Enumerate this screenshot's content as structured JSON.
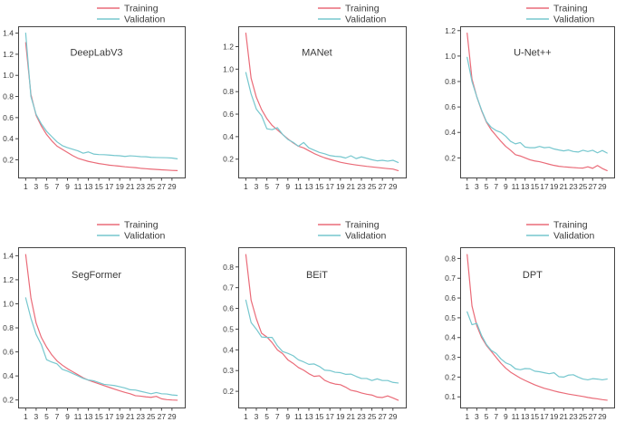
{
  "figure_title": "",
  "legend": {
    "training_label": "Training",
    "validation_label": "Validation",
    "position": "above-top-right"
  },
  "colors": {
    "training_line": "#ea6b78",
    "validation_line": "#76c7ce",
    "axis": "#454545",
    "text": "#3a3a3a",
    "background": "#ffffff"
  },
  "chart_data": [
    {
      "type": "line",
      "title": "DeepLabV3",
      "xlabel": "",
      "ylabel": "",
      "x": [
        1,
        2,
        3,
        4,
        5,
        6,
        7,
        8,
        9,
        10,
        11,
        12,
        13,
        14,
        15,
        16,
        17,
        18,
        19,
        20,
        21,
        22,
        23,
        24,
        25,
        26,
        27,
        28,
        29,
        30
      ],
      "x_ticks": [
        1,
        3,
        5,
        7,
        9,
        11,
        13,
        15,
        17,
        19,
        21,
        23,
        25,
        27,
        29
      ],
      "y_ticks": [
        0.2,
        0.4,
        0.6,
        0.8,
        1.0,
        1.2,
        1.4
      ],
      "grid": false,
      "series": [
        {
          "name": "Training",
          "values": [
            1.31,
            0.82,
            0.62,
            0.52,
            0.44,
            0.38,
            0.33,
            0.3,
            0.27,
            0.24,
            0.215,
            0.2,
            0.185,
            0.175,
            0.165,
            0.158,
            0.15,
            0.145,
            0.14,
            0.134,
            0.13,
            0.126,
            0.12,
            0.116,
            0.112,
            0.109,
            0.106,
            0.103,
            0.1,
            0.098
          ]
        },
        {
          "name": "Validation",
          "values": [
            1.4,
            0.8,
            0.63,
            0.54,
            0.47,
            0.42,
            0.37,
            0.335,
            0.315,
            0.3,
            0.285,
            0.263,
            0.275,
            0.255,
            0.25,
            0.249,
            0.245,
            0.241,
            0.239,
            0.232,
            0.238,
            0.235,
            0.23,
            0.229,
            0.224,
            0.222,
            0.221,
            0.22,
            0.217,
            0.21
          ]
        }
      ]
    },
    {
      "type": "line",
      "title": "MANet",
      "xlabel": "",
      "ylabel": "",
      "x": [
        1,
        2,
        3,
        4,
        5,
        6,
        7,
        8,
        9,
        10,
        11,
        12,
        13,
        14,
        15,
        16,
        17,
        18,
        19,
        20,
        21,
        22,
        23,
        24,
        25,
        26,
        27,
        28,
        29,
        30
      ],
      "x_ticks": [
        1,
        3,
        5,
        7,
        9,
        11,
        13,
        15,
        17,
        19,
        21,
        23,
        25,
        27,
        29
      ],
      "y_ticks": [
        0.2,
        0.4,
        0.6,
        0.8,
        1.0,
        1.2
      ],
      "grid": false,
      "series": [
        {
          "name": "Training",
          "values": [
            1.32,
            0.92,
            0.75,
            0.64,
            0.56,
            0.5,
            0.46,
            0.42,
            0.38,
            0.345,
            0.315,
            0.3,
            0.275,
            0.25,
            0.23,
            0.212,
            0.198,
            0.185,
            0.172,
            0.163,
            0.155,
            0.148,
            0.142,
            0.136,
            0.131,
            0.126,
            0.121,
            0.116,
            0.112,
            0.098
          ]
        },
        {
          "name": "Validation",
          "values": [
            0.97,
            0.78,
            0.645,
            0.585,
            0.47,
            0.462,
            0.48,
            0.42,
            0.375,
            0.35,
            0.315,
            0.348,
            0.3,
            0.28,
            0.26,
            0.248,
            0.232,
            0.225,
            0.222,
            0.21,
            0.23,
            0.205,
            0.22,
            0.208,
            0.195,
            0.185,
            0.19,
            0.182,
            0.19,
            0.17
          ]
        }
      ]
    },
    {
      "type": "line",
      "title": "U-Net++",
      "xlabel": "",
      "ylabel": "",
      "x": [
        1,
        2,
        3,
        4,
        5,
        6,
        7,
        8,
        9,
        10,
        11,
        12,
        13,
        14,
        15,
        16,
        17,
        18,
        19,
        20,
        21,
        22,
        23,
        24,
        25,
        26,
        27,
        28,
        29,
        30
      ],
      "x_ticks": [
        1,
        3,
        5,
        7,
        9,
        11,
        13,
        15,
        17,
        19,
        21,
        23,
        25,
        27,
        29
      ],
      "y_ticks": [
        0.2,
        0.4,
        0.6,
        0.8,
        1.0,
        1.2
      ],
      "grid": false,
      "series": [
        {
          "name": "Training",
          "values": [
            1.18,
            0.82,
            0.68,
            0.57,
            0.48,
            0.42,
            0.375,
            0.33,
            0.29,
            0.26,
            0.225,
            0.215,
            0.2,
            0.185,
            0.176,
            0.17,
            0.16,
            0.15,
            0.141,
            0.134,
            0.13,
            0.127,
            0.124,
            0.121,
            0.12,
            0.13,
            0.118,
            0.14,
            0.117,
            0.1
          ]
        },
        {
          "name": "Validation",
          "values": [
            0.99,
            0.8,
            0.68,
            0.575,
            0.485,
            0.44,
            0.415,
            0.4,
            0.37,
            0.33,
            0.31,
            0.32,
            0.285,
            0.28,
            0.28,
            0.29,
            0.28,
            0.284,
            0.27,
            0.262,
            0.255,
            0.262,
            0.25,
            0.246,
            0.26,
            0.25,
            0.26,
            0.24,
            0.258,
            0.238
          ]
        }
      ]
    },
    {
      "type": "line",
      "title": "SegFormer",
      "xlabel": "",
      "ylabel": "",
      "x": [
        1,
        2,
        3,
        4,
        5,
        6,
        7,
        8,
        9,
        10,
        11,
        12,
        13,
        14,
        15,
        16,
        17,
        18,
        19,
        20,
        21,
        22,
        23,
        24,
        25,
        26,
        27,
        28,
        29,
        30
      ],
      "x_ticks": [
        1,
        3,
        5,
        7,
        9,
        11,
        13,
        15,
        17,
        19,
        21,
        23,
        25,
        27,
        29
      ],
      "y_ticks": [
        0.2,
        0.4,
        0.6,
        0.8,
        1.0,
        1.2,
        1.4
      ],
      "grid": false,
      "series": [
        {
          "name": "Training",
          "values": [
            1.41,
            1.05,
            0.84,
            0.72,
            0.64,
            0.575,
            0.525,
            0.49,
            0.46,
            0.435,
            0.41,
            0.385,
            0.365,
            0.35,
            0.335,
            0.32,
            0.305,
            0.29,
            0.276,
            0.263,
            0.252,
            0.236,
            0.232,
            0.226,
            0.222,
            0.23,
            0.21,
            0.203,
            0.2,
            0.198
          ]
        },
        {
          "name": "Validation",
          "values": [
            1.05,
            0.88,
            0.745,
            0.66,
            0.535,
            0.515,
            0.5,
            0.455,
            0.44,
            0.42,
            0.4,
            0.38,
            0.366,
            0.36,
            0.345,
            0.33,
            0.325,
            0.32,
            0.31,
            0.3,
            0.285,
            0.283,
            0.272,
            0.262,
            0.252,
            0.262,
            0.252,
            0.25,
            0.242,
            0.238
          ]
        }
      ]
    },
    {
      "type": "line",
      "title": "BEiT",
      "xlabel": "",
      "ylabel": "",
      "x": [
        1,
        2,
        3,
        4,
        5,
        6,
        7,
        8,
        9,
        10,
        11,
        12,
        13,
        14,
        15,
        16,
        17,
        18,
        19,
        20,
        21,
        22,
        23,
        24,
        25,
        26,
        27,
        28,
        29,
        30
      ],
      "x_ticks": [
        1,
        3,
        5,
        7,
        9,
        11,
        13,
        15,
        17,
        19,
        21,
        23,
        25,
        27,
        29
      ],
      "y_ticks": [
        0.2,
        0.3,
        0.4,
        0.5,
        0.6,
        0.7,
        0.8
      ],
      "grid": false,
      "series": [
        {
          "name": "Training",
          "values": [
            0.86,
            0.64,
            0.55,
            0.48,
            0.462,
            0.435,
            0.4,
            0.382,
            0.352,
            0.335,
            0.315,
            0.302,
            0.285,
            0.272,
            0.275,
            0.253,
            0.242,
            0.235,
            0.232,
            0.22,
            0.205,
            0.2,
            0.192,
            0.186,
            0.182,
            0.172,
            0.17,
            0.178,
            0.168,
            0.157
          ]
        },
        {
          "name": "Validation",
          "values": [
            0.64,
            0.532,
            0.5,
            0.462,
            0.46,
            0.46,
            0.42,
            0.392,
            0.383,
            0.372,
            0.352,
            0.342,
            0.33,
            0.332,
            0.32,
            0.302,
            0.3,
            0.292,
            0.29,
            0.282,
            0.283,
            0.272,
            0.262,
            0.262,
            0.252,
            0.26,
            0.252,
            0.252,
            0.243,
            0.24
          ]
        }
      ]
    },
    {
      "type": "line",
      "title": "DPT",
      "xlabel": "",
      "ylabel": "",
      "x": [
        1,
        2,
        3,
        4,
        5,
        6,
        7,
        8,
        9,
        10,
        11,
        12,
        13,
        14,
        15,
        16,
        17,
        18,
        19,
        20,
        21,
        22,
        23,
        24,
        25,
        26,
        27,
        28,
        29,
        30
      ],
      "x_ticks": [
        1,
        3,
        5,
        7,
        9,
        11,
        13,
        15,
        17,
        19,
        21,
        23,
        25,
        27,
        29
      ],
      "y_ticks": [
        0.1,
        0.2,
        0.3,
        0.4,
        0.5,
        0.6,
        0.7,
        0.8
      ],
      "grid": false,
      "series": [
        {
          "name": "Training",
          "values": [
            0.82,
            0.56,
            0.46,
            0.4,
            0.36,
            0.33,
            0.3,
            0.27,
            0.245,
            0.225,
            0.21,
            0.195,
            0.183,
            0.172,
            0.161,
            0.152,
            0.143,
            0.137,
            0.13,
            0.124,
            0.119,
            0.114,
            0.11,
            0.106,
            0.102,
            0.097,
            0.093,
            0.09,
            0.086,
            0.083
          ]
        },
        {
          "name": "Validation",
          "values": [
            0.53,
            0.465,
            0.472,
            0.41,
            0.365,
            0.335,
            0.32,
            0.292,
            0.272,
            0.262,
            0.242,
            0.237,
            0.243,
            0.242,
            0.23,
            0.227,
            0.222,
            0.217,
            0.222,
            0.202,
            0.2,
            0.21,
            0.212,
            0.2,
            0.19,
            0.186,
            0.192,
            0.19,
            0.186,
            0.19
          ]
        }
      ]
    }
  ]
}
